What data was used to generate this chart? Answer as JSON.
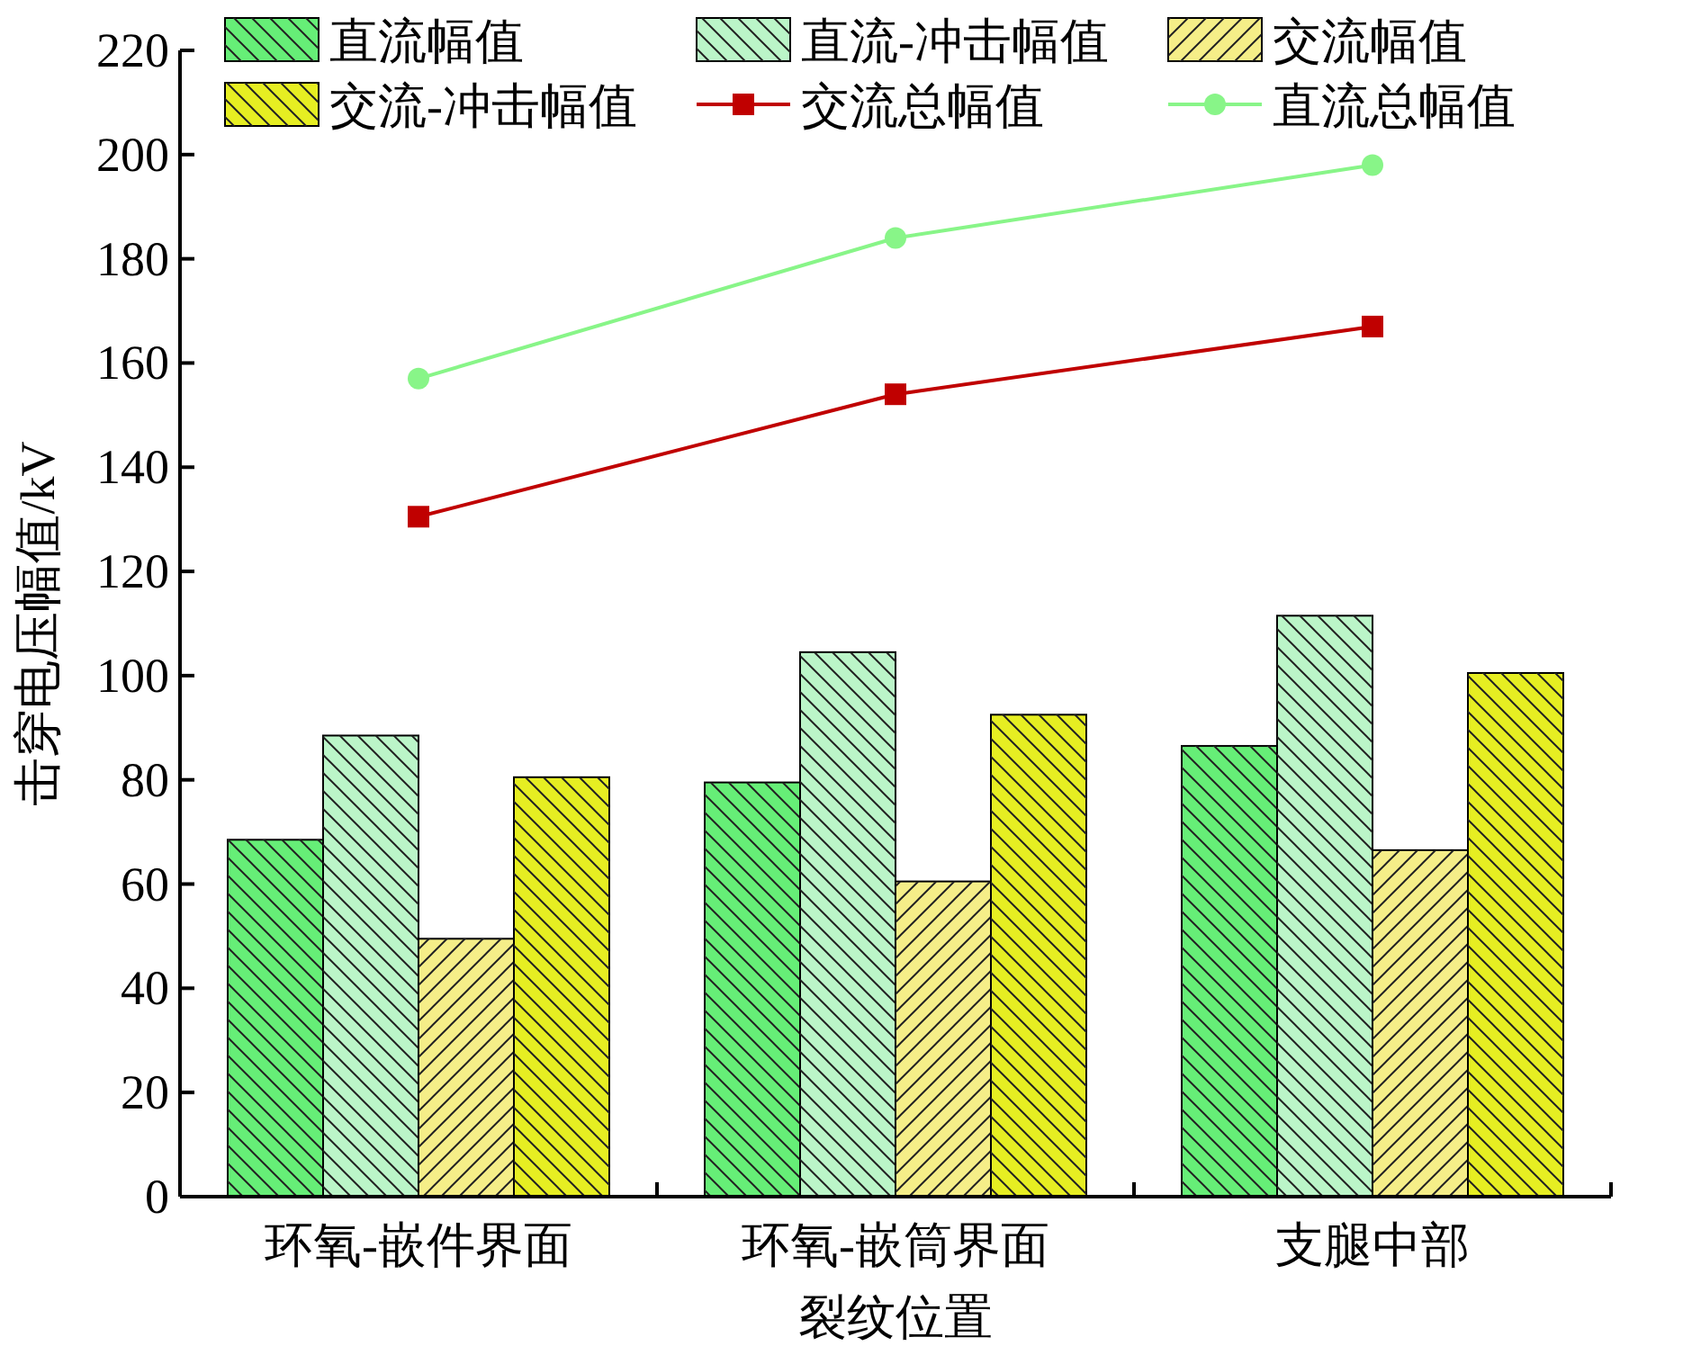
{
  "chart_data": {
    "type": "bar",
    "xlabel": "裂纹位置",
    "ylabel": "击穿电压幅值/kV",
    "categories": [
      "环氧-嵌件界面",
      "环氧-嵌筒界面",
      "支腿中部"
    ],
    "ylim": [
      0,
      220
    ],
    "yticks": [
      0,
      20,
      40,
      60,
      80,
      100,
      120,
      140,
      160,
      180,
      200,
      220
    ],
    "legend": "top",
    "series": [
      {
        "name": "直流幅值",
        "color": "#66ee77",
        "values": [
          68.5,
          79.5,
          86.5
        ]
      },
      {
        "name": "直流-冲击幅值",
        "color": "#bbf5c8",
        "values": [
          88.5,
          104.5,
          111.5
        ]
      },
      {
        "name": "交流幅值",
        "color": "#f5ee88",
        "values": [
          49.5,
          60.5,
          66.5
        ]
      },
      {
        "name": "交流-冲击幅值",
        "color": "#e6ee22",
        "values": [
          80.5,
          92.5,
          100.5
        ]
      },
      {
        "name": "交流总幅值",
        "type": "line",
        "color": "#c00000",
        "marker": "square",
        "values": [
          130.5,
          154,
          167
        ]
      },
      {
        "name": "直流总幅值",
        "type": "line",
        "color": "#88f588",
        "marker": "circle",
        "values": [
          157,
          184,
          198
        ]
      }
    ]
  }
}
